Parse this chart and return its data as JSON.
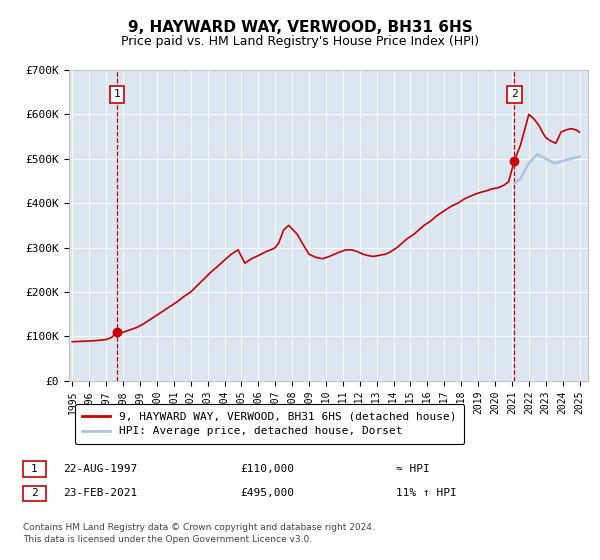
{
  "title": "9, HAYWARD WAY, VERWOOD, BH31 6HS",
  "subtitle": "Price paid vs. HM Land Registry's House Price Index (HPI)",
  "sale1_date": "22-AUG-1997",
  "sale1_price": 110000,
  "sale1_label": "≈ HPI",
  "sale2_date": "23-FEB-2021",
  "sale2_price": 495000,
  "sale2_label": "11% ↑ HPI",
  "legend1": "9, HAYWARD WAY, VERWOOD, BH31 6HS (detached house)",
  "legend2": "HPI: Average price, detached house, Dorset",
  "footnote": "Contains HM Land Registry data © Crown copyright and database right 2024.\nThis data is licensed under the Open Government Licence v3.0.",
  "hpi_color": "#aac4e0",
  "price_color": "#cc0000",
  "marker_color": "#cc0000",
  "dashed_color": "#cc0000",
  "background_color": "#dce6f1",
  "ylim": [
    0,
    700000
  ],
  "yticks": [
    0,
    100000,
    200000,
    300000,
    400000,
    500000,
    600000,
    700000
  ],
  "ytick_labels": [
    "£0",
    "£100K",
    "£200K",
    "£300K",
    "£400K",
    "£500K",
    "£600K",
    "£700K"
  ],
  "xstart": 1994.8,
  "xend": 2025.5,
  "sale1_x": 1997.64,
  "sale2_x": 2021.14,
  "hpi_x": [
    2021.14,
    2021.5,
    2022.0,
    2022.5,
    2023.0,
    2023.5,
    2024.0,
    2024.5,
    2025.0
  ],
  "hpi_y": [
    445000,
    455000,
    490000,
    510000,
    500000,
    490000,
    495000,
    500000,
    505000
  ],
  "price_x": [
    1995.0,
    1995.3,
    1995.6,
    1995.9,
    1996.2,
    1996.5,
    1996.8,
    1997.0,
    1997.3,
    1997.64,
    1997.9,
    1998.2,
    1998.5,
    1998.8,
    1999.2,
    1999.6,
    2000.0,
    2000.4,
    2000.8,
    2001.2,
    2001.6,
    2002.0,
    2002.4,
    2002.8,
    2003.2,
    2003.6,
    2004.0,
    2004.4,
    2004.8,
    2005.2,
    2005.6,
    2006.0,
    2006.4,
    2006.8,
    2007.0,
    2007.2,
    2007.5,
    2007.8,
    2008.0,
    2008.3,
    2008.6,
    2009.0,
    2009.4,
    2009.8,
    2010.2,
    2010.5,
    2010.8,
    2011.2,
    2011.5,
    2011.8,
    2012.2,
    2012.5,
    2012.8,
    2013.2,
    2013.5,
    2013.8,
    2014.2,
    2014.5,
    2014.8,
    2015.2,
    2015.5,
    2015.8,
    2016.2,
    2016.5,
    2016.8,
    2017.2,
    2017.5,
    2017.8,
    2018.2,
    2018.5,
    2018.8,
    2019.2,
    2019.5,
    2019.8,
    2020.2,
    2020.5,
    2020.8,
    2021.14,
    2021.5,
    2022.0,
    2022.3,
    2022.6,
    2022.8,
    2023.0,
    2023.3,
    2023.6,
    2023.9,
    2024.2,
    2024.5,
    2024.8,
    2025.0
  ],
  "price_y": [
    88000,
    88500,
    89000,
    89500,
    90000,
    91000,
    92000,
    93000,
    97000,
    110000,
    108000,
    112000,
    116000,
    120000,
    128000,
    138000,
    148000,
    158000,
    168000,
    178000,
    190000,
    200000,
    215000,
    230000,
    245000,
    258000,
    272000,
    285000,
    295000,
    265000,
    275000,
    282000,
    290000,
    296000,
    300000,
    310000,
    340000,
    350000,
    342000,
    330000,
    310000,
    285000,
    278000,
    275000,
    280000,
    285000,
    290000,
    295000,
    295000,
    292000,
    285000,
    282000,
    280000,
    283000,
    285000,
    290000,
    300000,
    310000,
    320000,
    330000,
    340000,
    350000,
    360000,
    370000,
    378000,
    388000,
    395000,
    400000,
    410000,
    415000,
    420000,
    425000,
    428000,
    432000,
    435000,
    440000,
    448000,
    495000,
    530000,
    600000,
    590000,
    575000,
    560000,
    548000,
    540000,
    535000,
    560000,
    565000,
    568000,
    565000,
    560000
  ]
}
